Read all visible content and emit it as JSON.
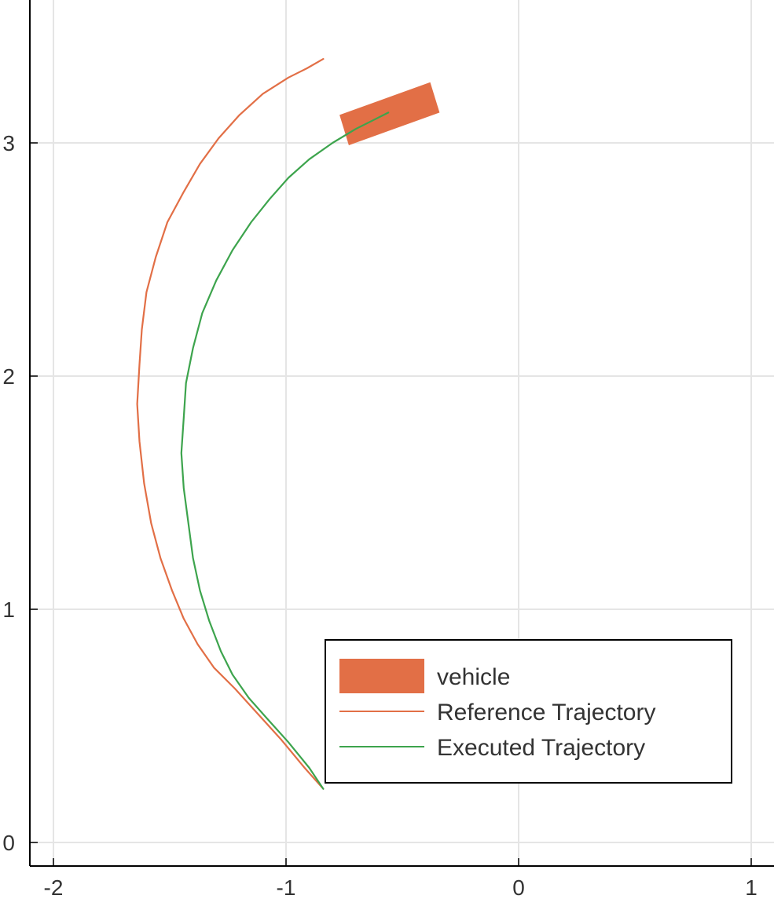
{
  "chart_data": {
    "type": "line",
    "title": "",
    "xlabel": "",
    "ylabel": "",
    "xlim": [
      -2.1,
      1.1
    ],
    "ylim": [
      -0.1,
      3.6
    ],
    "grid": true,
    "legend_position": "bottom-right",
    "x_ticks": [
      -2,
      -1,
      0,
      1
    ],
    "y_ticks": [
      0,
      1,
      2,
      3
    ],
    "x_tick_labels": [
      "-2",
      "-1",
      "0",
      "1"
    ],
    "y_tick_labels": [
      "0",
      "1",
      "2",
      "3"
    ],
    "colors": {
      "vehicle": "#e26f46",
      "reference": "#e26f46",
      "executed": "#3da44d",
      "grid": "#e5e5e5",
      "axis": "#000000"
    },
    "series": [
      {
        "name": "vehicle",
        "kind": "polygon",
        "points": [
          [
            -0.77,
            3.12
          ],
          [
            -0.38,
            3.26
          ],
          [
            -0.34,
            3.13
          ],
          [
            -0.73,
            2.99
          ]
        ]
      },
      {
        "name": "Reference Trajectory",
        "kind": "line",
        "points": [
          [
            -0.84,
            0.23
          ],
          [
            -0.92,
            0.32
          ],
          [
            -1.02,
            0.44
          ],
          [
            -1.12,
            0.55
          ],
          [
            -1.22,
            0.66
          ],
          [
            -1.31,
            0.75
          ],
          [
            -1.38,
            0.85
          ],
          [
            -1.44,
            0.96
          ],
          [
            -1.49,
            1.08
          ],
          [
            -1.54,
            1.22
          ],
          [
            -1.58,
            1.37
          ],
          [
            -1.61,
            1.54
          ],
          [
            -1.63,
            1.72
          ],
          [
            -1.64,
            1.88
          ],
          [
            -1.63,
            2.05
          ],
          [
            -1.62,
            2.2
          ],
          [
            -1.6,
            2.36
          ],
          [
            -1.56,
            2.51
          ],
          [
            -1.51,
            2.66
          ],
          [
            -1.44,
            2.79
          ],
          [
            -1.37,
            2.91
          ],
          [
            -1.29,
            3.02
          ],
          [
            -1.2,
            3.12
          ],
          [
            -1.1,
            3.21
          ],
          [
            -0.99,
            3.28
          ],
          [
            -0.91,
            3.32
          ],
          [
            -0.84,
            3.36
          ]
        ]
      },
      {
        "name": "Executed Trajectory",
        "kind": "line",
        "points": [
          [
            -0.84,
            0.23
          ],
          [
            -0.9,
            0.32
          ],
          [
            -0.99,
            0.43
          ],
          [
            -1.08,
            0.53
          ],
          [
            -1.16,
            0.62
          ],
          [
            -1.23,
            0.72
          ],
          [
            -1.28,
            0.82
          ],
          [
            -1.33,
            0.95
          ],
          [
            -1.37,
            1.08
          ],
          [
            -1.4,
            1.22
          ],
          [
            -1.42,
            1.37
          ],
          [
            -1.44,
            1.52
          ],
          [
            -1.45,
            1.67
          ],
          [
            -1.44,
            1.82
          ],
          [
            -1.43,
            1.97
          ],
          [
            -1.4,
            2.12
          ],
          [
            -1.36,
            2.27
          ],
          [
            -1.3,
            2.41
          ],
          [
            -1.23,
            2.54
          ],
          [
            -1.15,
            2.66
          ],
          [
            -1.07,
            2.76
          ],
          [
            -0.99,
            2.85
          ],
          [
            -0.9,
            2.93
          ],
          [
            -0.8,
            3.0
          ],
          [
            -0.7,
            3.06
          ],
          [
            -0.62,
            3.1
          ],
          [
            -0.56,
            3.13
          ]
        ]
      }
    ],
    "legend": [
      {
        "label": "vehicle",
        "kind": "patch"
      },
      {
        "label": "Reference Trajectory",
        "kind": "line"
      },
      {
        "label": "Executed Trajectory",
        "kind": "line"
      }
    ]
  }
}
